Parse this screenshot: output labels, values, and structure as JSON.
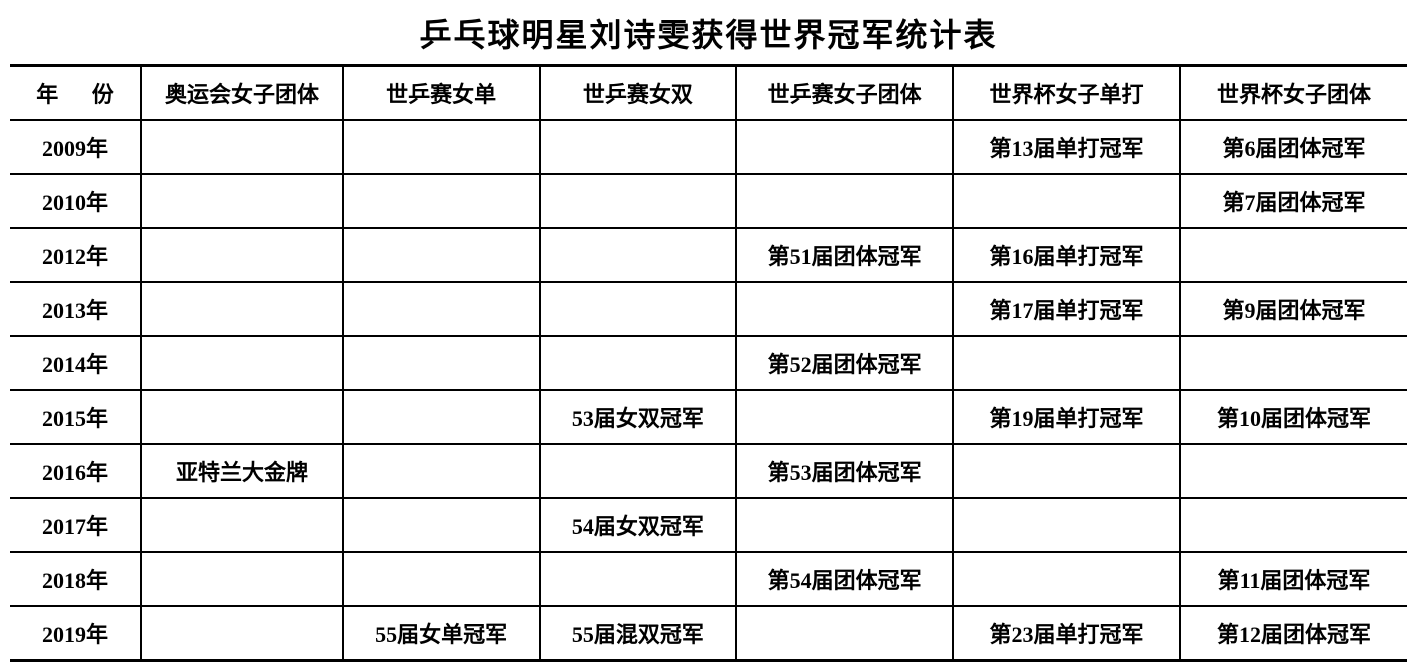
{
  "title": "乒乓球明星刘诗雯获得世界冠军统计表",
  "colors": {
    "text": "#000000",
    "background": "#ffffff",
    "border": "#000000"
  },
  "typography": {
    "title_fontsize": 32,
    "cell_fontsize": 22,
    "font_family": "SimSun"
  },
  "table": {
    "columns": [
      "年 份",
      "奥运会女子团体",
      "世乒赛女单",
      "世乒赛女双",
      "世乒赛女子团体",
      "世界杯女子单打",
      "世界杯女子团体"
    ],
    "rows": [
      {
        "year": "2009年",
        "cells": [
          "",
          "",
          "",
          "",
          "第13届单打冠军",
          "第6届团体冠军"
        ]
      },
      {
        "year": "2010年",
        "cells": [
          "",
          "",
          "",
          "",
          "",
          "第7届团体冠军"
        ]
      },
      {
        "year": "2012年",
        "cells": [
          "",
          "",
          "",
          "第51届团体冠军",
          "第16届单打冠军",
          ""
        ]
      },
      {
        "year": "2013年",
        "cells": [
          "",
          "",
          "",
          "",
          "第17届单打冠军",
          "第9届团体冠军"
        ]
      },
      {
        "year": "2014年",
        "cells": [
          "",
          "",
          "",
          "第52届团体冠军",
          "",
          ""
        ]
      },
      {
        "year": "2015年",
        "cells": [
          "",
          "",
          "53届女双冠军",
          "",
          "第19届单打冠军",
          "第10届团体冠军"
        ]
      },
      {
        "year": "2016年",
        "cells": [
          "亚特兰大金牌",
          "",
          "",
          "第53届团体冠军",
          "",
          ""
        ]
      },
      {
        "year": "2017年",
        "cells": [
          "",
          "",
          "54届女双冠军",
          "",
          "",
          ""
        ]
      },
      {
        "year": "2018年",
        "cells": [
          "",
          "",
          "",
          "第54届团体冠军",
          "",
          "第11届团体冠军"
        ]
      },
      {
        "year": "2019年",
        "cells": [
          "",
          "55届女单冠军",
          "55届混双冠军",
          "",
          "第23届单打冠军",
          "第12届团体冠军"
        ]
      }
    ]
  }
}
